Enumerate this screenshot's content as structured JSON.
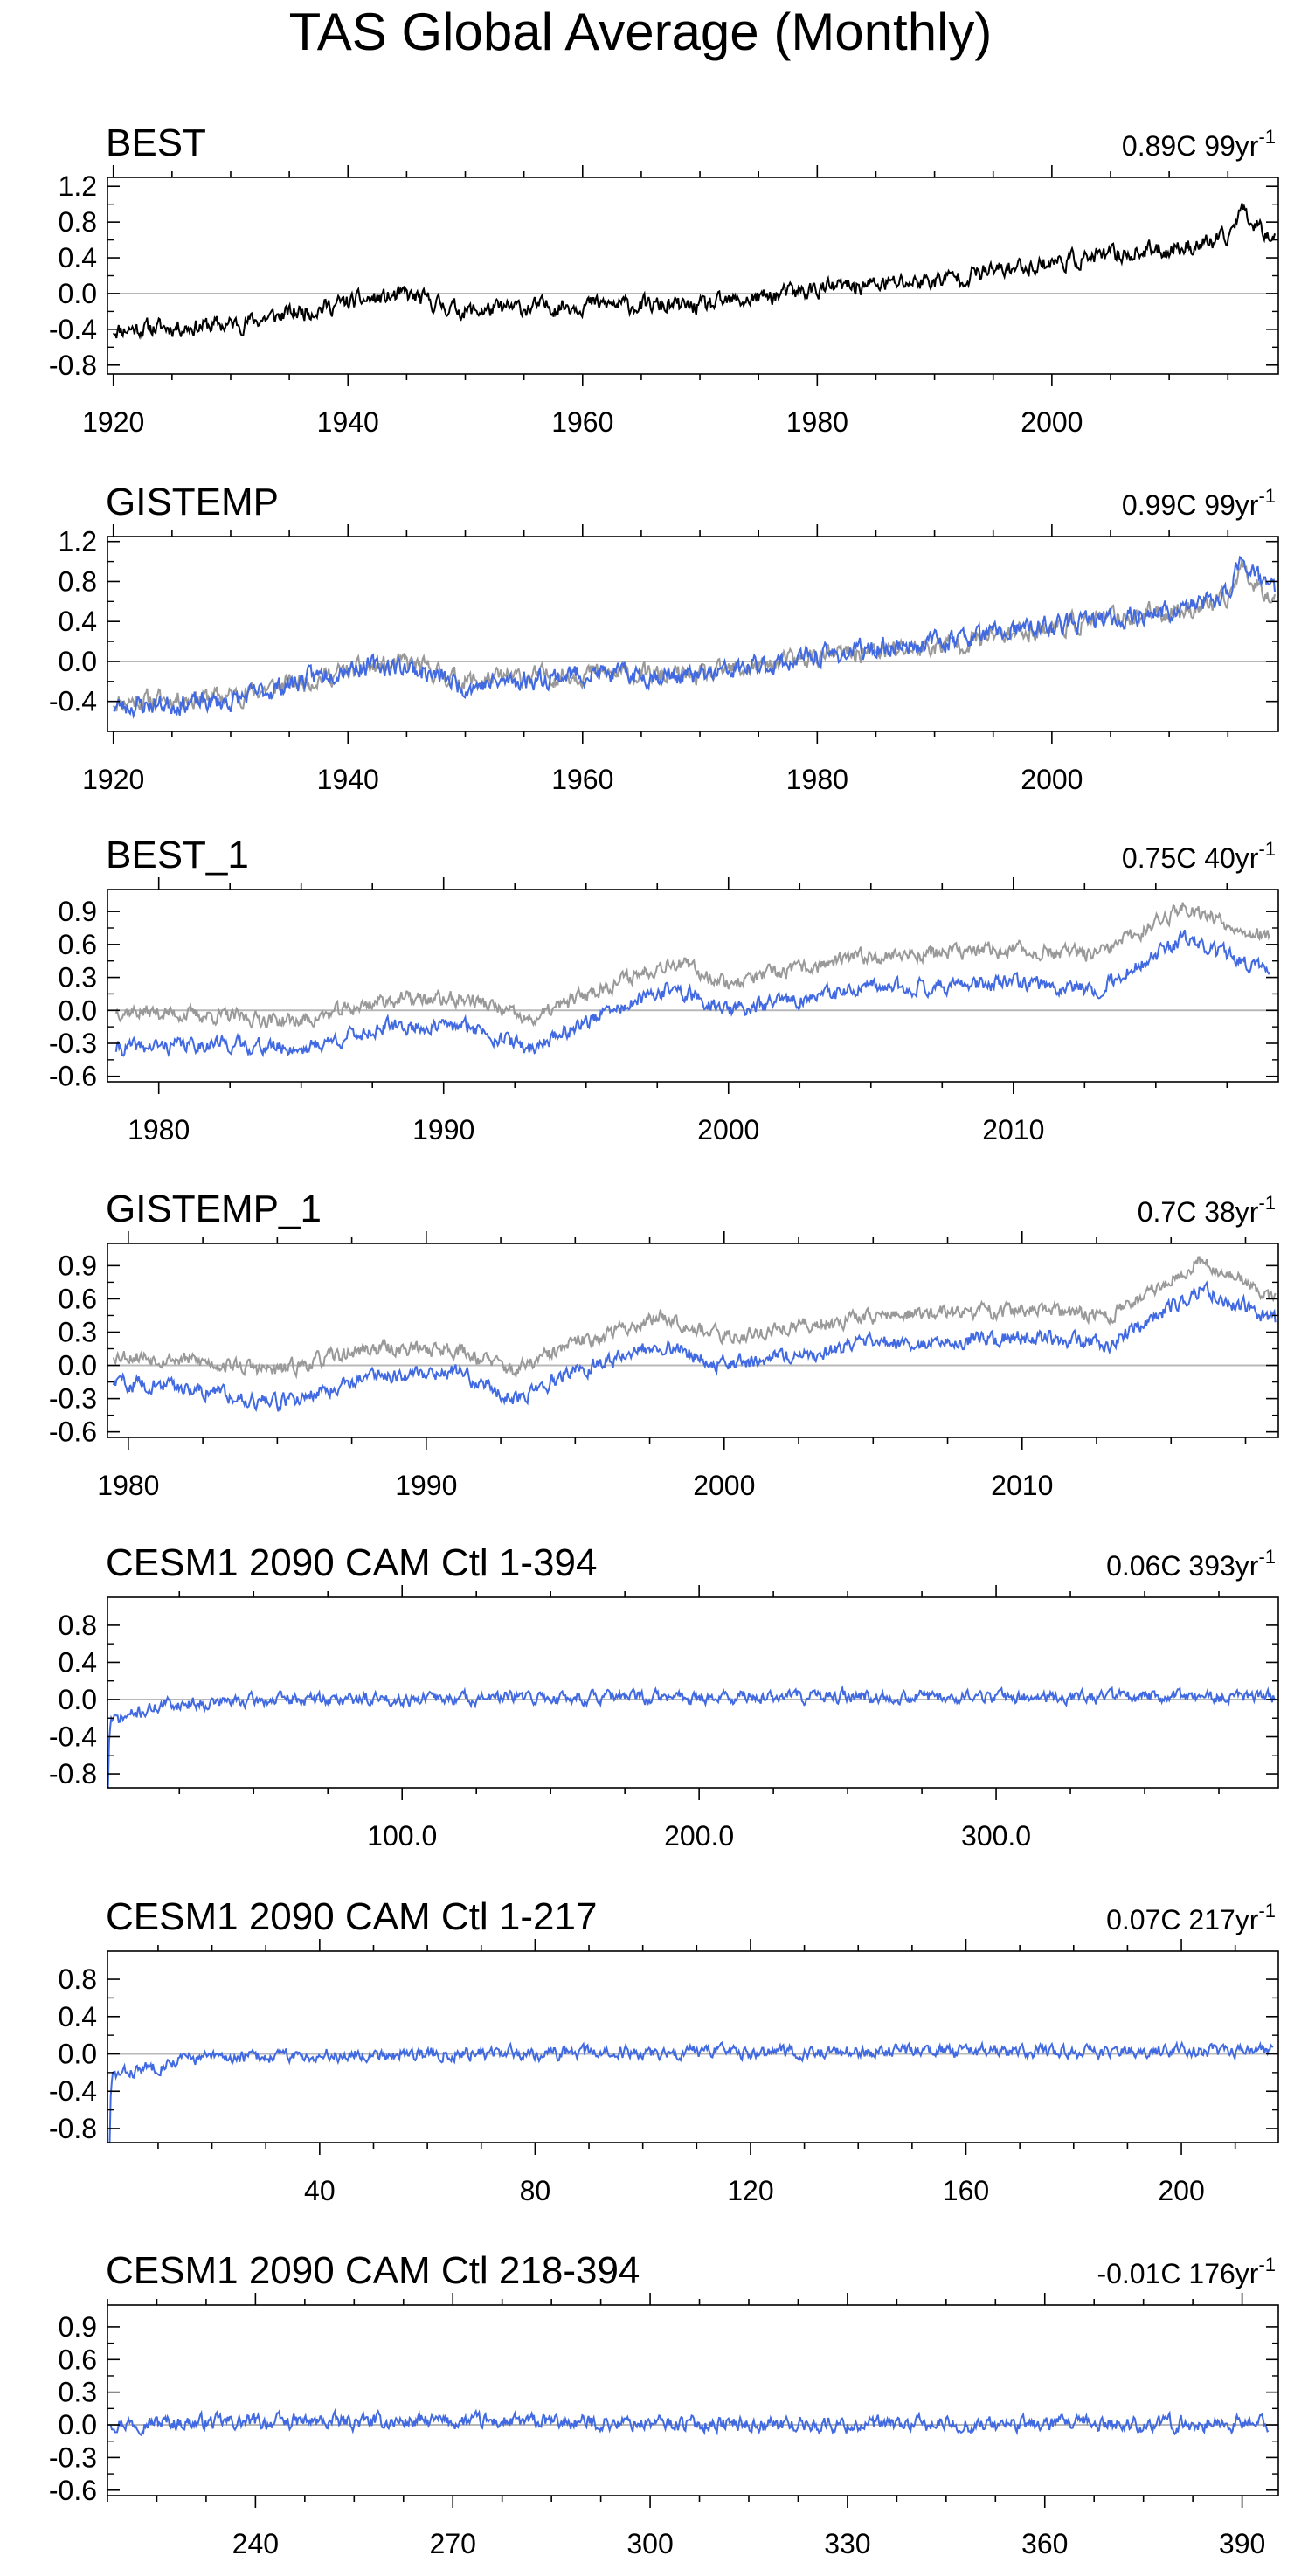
{
  "figure": {
    "title": "TAS Global Average (Monthly)"
  },
  "chart_data": [
    {
      "type": "line",
      "title": "BEST",
      "trend_value": "0.89C 99yr",
      "trend_superscript": "-1",
      "xlabel": "",
      "ylabel": "",
      "xlim": [
        1919.5,
        2019.3
      ],
      "ylim": [
        -0.9,
        1.3
      ],
      "xticks": [
        1920,
        1940,
        1960,
        1980,
        2000
      ],
      "xtick_labels": [
        "1920",
        "1940",
        "1960",
        "1980",
        "2000"
      ],
      "yticks": [
        -0.8,
        -0.4,
        0.0,
        0.4,
        0.8,
        1.2
      ],
      "ytick_labels": [
        "-0.8",
        "-0.4",
        "0.0",
        "0.4",
        "0.8",
        "1.2"
      ],
      "zero_line": true,
      "colors": {
        "primary": "#000000",
        "reference": "#999999"
      },
      "series": [
        {
          "role": "primary",
          "noise": 0.1,
          "seed": 11,
          "anchors": [
            [
              1920,
              -0.4
            ],
            [
              1930,
              -0.35
            ],
            [
              1940,
              -0.1
            ],
            [
              1945,
              -0.02
            ],
            [
              1950,
              -0.2
            ],
            [
              1960,
              -0.12
            ],
            [
              1970,
              -0.15
            ],
            [
              1980,
              0.05
            ],
            [
              1990,
              0.15
            ],
            [
              2000,
              0.35
            ],
            [
              2010,
              0.5
            ],
            [
              2015,
              0.6
            ],
            [
              2016,
              0.95
            ],
            [
              2019,
              0.62
            ]
          ]
        }
      ]
    },
    {
      "type": "line",
      "title": "GISTEMP",
      "trend_value": "0.99C 99yr",
      "trend_superscript": "-1",
      "xlabel": "",
      "ylabel": "",
      "xlim": [
        1919.5,
        2019.3
      ],
      "ylim": [
        -0.7,
        1.25
      ],
      "xticks": [
        1920,
        1940,
        1960,
        1980,
        2000
      ],
      "xtick_labels": [
        "1920",
        "1940",
        "1960",
        "1980",
        "2000"
      ],
      "yticks": [
        -0.4,
        0.0,
        0.4,
        0.8,
        1.2
      ],
      "ytick_labels": [
        "-0.4",
        "0.0",
        "0.4",
        "0.8",
        "1.2"
      ],
      "zero_line": true,
      "colors": {
        "primary": "#4169e1",
        "reference": "#999999"
      },
      "series": [
        {
          "role": "reference",
          "noise": 0.1,
          "seed": 11,
          "anchors": [
            [
              1920,
              -0.4
            ],
            [
              1930,
              -0.35
            ],
            [
              1940,
              -0.1
            ],
            [
              1945,
              -0.02
            ],
            [
              1950,
              -0.2
            ],
            [
              1960,
              -0.12
            ],
            [
              1970,
              -0.15
            ],
            [
              1980,
              0.05
            ],
            [
              1990,
              0.15
            ],
            [
              2000,
              0.35
            ],
            [
              2010,
              0.5
            ],
            [
              2015,
              0.6
            ],
            [
              2016,
              0.95
            ],
            [
              2019,
              0.62
            ]
          ]
        },
        {
          "role": "primary",
          "noise": 0.1,
          "seed": 23,
          "anchors": [
            [
              1920,
              -0.45
            ],
            [
              1930,
              -0.4
            ],
            [
              1940,
              -0.05
            ],
            [
              1945,
              -0.05
            ],
            [
              1950,
              -0.25
            ],
            [
              1960,
              -0.12
            ],
            [
              1970,
              -0.15
            ],
            [
              1980,
              0.05
            ],
            [
              1990,
              0.2
            ],
            [
              2000,
              0.35
            ],
            [
              2010,
              0.5
            ],
            [
              2015,
              0.65
            ],
            [
              2016,
              1.05
            ],
            [
              2019,
              0.7
            ]
          ]
        }
      ]
    },
    {
      "type": "line",
      "title": "BEST_1",
      "trend_value": "0.75C 40yr",
      "trend_superscript": "-1",
      "xlabel": "",
      "ylabel": "",
      "xlim": [
        1978.2,
        2019.3
      ],
      "ylim": [
        -0.65,
        1.1
      ],
      "xticks": [
        1980,
        1990,
        2000,
        2010
      ],
      "xtick_labels": [
        "1980",
        "1990",
        "2000",
        "2010"
      ],
      "yticks": [
        -0.6,
        -0.3,
        0.0,
        0.3,
        0.6,
        0.9
      ],
      "ytick_labels": [
        "-0.6",
        "-0.3",
        "0.0",
        "0.3",
        "0.6",
        "0.9"
      ],
      "zero_line": true,
      "colors": {
        "primary": "#4169e1",
        "reference": "#999999"
      },
      "series": [
        {
          "role": "reference",
          "noise": 0.07,
          "seed": 37,
          "anchors": [
            [
              1978.5,
              0.0
            ],
            [
              1982,
              -0.05
            ],
            [
              1985,
              -0.1
            ],
            [
              1988,
              0.1
            ],
            [
              1991,
              0.1
            ],
            [
              1993,
              -0.1
            ],
            [
              1995,
              0.15
            ],
            [
              1998,
              0.45
            ],
            [
              2000,
              0.25
            ],
            [
              2005,
              0.5
            ],
            [
              2010,
              0.55
            ],
            [
              2013,
              0.5
            ],
            [
              2016,
              0.95
            ],
            [
              2019,
              0.65
            ]
          ]
        },
        {
          "role": "primary",
          "noise": 0.07,
          "seed": 41,
          "anchors": [
            [
              1978.5,
              -0.35
            ],
            [
              1982,
              -0.3
            ],
            [
              1985,
              -0.35
            ],
            [
              1988,
              -0.15
            ],
            [
              1991,
              -0.15
            ],
            [
              1993,
              -0.35
            ],
            [
              1995,
              -0.1
            ],
            [
              1998,
              0.2
            ],
            [
              2000,
              0.0
            ],
            [
              2005,
              0.2
            ],
            [
              2010,
              0.25
            ],
            [
              2013,
              0.2
            ],
            [
              2016,
              0.65
            ],
            [
              2019,
              0.35
            ]
          ]
        }
      ]
    },
    {
      "type": "line",
      "title": "GISTEMP_1",
      "trend_value": "0.7C 38yr",
      "trend_superscript": "-1",
      "xlabel": "",
      "ylabel": "",
      "xlim": [
        1979.3,
        2018.6
      ],
      "ylim": [
        -0.65,
        1.1
      ],
      "xticks": [
        1980,
        1990,
        2000,
        2010
      ],
      "xtick_labels": [
        "1980",
        "1990",
        "2000",
        "2010"
      ],
      "yticks": [
        -0.6,
        -0.3,
        0.0,
        0.3,
        0.6,
        0.9
      ],
      "ytick_labels": [
        "-0.6",
        "-0.3",
        "0.0",
        "0.3",
        "0.6",
        "0.9"
      ],
      "zero_line": true,
      "colors": {
        "primary": "#4169e1",
        "reference": "#999999"
      },
      "series": [
        {
          "role": "reference",
          "noise": 0.07,
          "seed": 53,
          "anchors": [
            [
              1979.5,
              0.1
            ],
            [
              1982,
              0.05
            ],
            [
              1985,
              -0.05
            ],
            [
              1988,
              0.15
            ],
            [
              1991,
              0.15
            ],
            [
              1993,
              -0.05
            ],
            [
              1995,
              0.2
            ],
            [
              1998,
              0.45
            ],
            [
              2000,
              0.25
            ],
            [
              2005,
              0.45
            ],
            [
              2010,
              0.5
            ],
            [
              2013,
              0.45
            ],
            [
              2016,
              0.95
            ],
            [
              2018.5,
              0.6
            ]
          ]
        },
        {
          "role": "primary",
          "noise": 0.07,
          "seed": 59,
          "anchors": [
            [
              1979.5,
              -0.15
            ],
            [
              1982,
              -0.2
            ],
            [
              1985,
              -0.35
            ],
            [
              1988,
              -0.1
            ],
            [
              1991,
              -0.05
            ],
            [
              1993,
              -0.3
            ],
            [
              1995,
              -0.05
            ],
            [
              1998,
              0.2
            ],
            [
              2000,
              0.0
            ],
            [
              2005,
              0.2
            ],
            [
              2010,
              0.25
            ],
            [
              2013,
              0.2
            ],
            [
              2016,
              0.7
            ],
            [
              2018.5,
              0.4
            ]
          ]
        }
      ]
    },
    {
      "type": "line",
      "title": "CESM1 2090 CAM Ctl 1-394",
      "trend_value": "0.06C 393yr",
      "trend_superscript": "-1",
      "xlabel": "",
      "ylabel": "",
      "xlim": [
        0.8,
        395
      ],
      "ylim": [
        -0.95,
        1.1
      ],
      "xticks": [
        100,
        200,
        300
      ],
      "xtick_labels": [
        "100.0",
        "200.0",
        "300.0"
      ],
      "yticks": [
        -0.8,
        -0.4,
        0.0,
        0.4,
        0.8
      ],
      "ytick_labels": [
        "-0.8",
        "-0.4",
        "0.0",
        "0.4",
        "0.8"
      ],
      "zero_line": true,
      "colors": {
        "primary": "#4169e1",
        "reference": "#999999"
      },
      "series": [
        {
          "role": "primary",
          "noise": 0.07,
          "seed": 71,
          "spinup": [
            -0.95,
            -0.45,
            -0.3,
            -0.2
          ],
          "anchors": [
            [
              1,
              -0.25
            ],
            [
              20,
              -0.05
            ],
            [
              60,
              0.0
            ],
            [
              150,
              0.02
            ],
            [
              270,
              0.03
            ],
            [
              394,
              0.02
            ]
          ]
        }
      ]
    },
    {
      "type": "line",
      "title": "CESM1 2090 CAM Ctl 1-217",
      "trend_value": "0.07C 217yr",
      "trend_superscript": "-1",
      "xlabel": "",
      "ylabel": "",
      "xlim": [
        0.6,
        218
      ],
      "ylim": [
        -0.95,
        1.1
      ],
      "xticks": [
        40,
        80,
        120,
        160,
        200
      ],
      "xtick_labels": [
        "40",
        "80",
        "120",
        "160",
        "200"
      ],
      "yticks": [
        -0.8,
        -0.4,
        0.0,
        0.4,
        0.8
      ],
      "ytick_labels": [
        "-0.8",
        "-0.4",
        "0.0",
        "0.4",
        "0.8"
      ],
      "zero_line": true,
      "colors": {
        "primary": "#4169e1",
        "reference": "#999999"
      },
      "series": [
        {
          "role": "primary",
          "noise": 0.07,
          "seed": 83,
          "spinup": [
            -0.95,
            -0.45,
            -0.3,
            -0.2
          ],
          "anchors": [
            [
              1,
              -0.25
            ],
            [
              15,
              -0.05
            ],
            [
              50,
              0.0
            ],
            [
              120,
              0.02
            ],
            [
              217,
              0.03
            ]
          ]
        }
      ]
    },
    {
      "type": "line",
      "title": "CESM1 2090 CAM Ctl 218-394",
      "trend_value": "-0.01C 176yr",
      "trend_superscript": "-1",
      "xlabel": "",
      "ylabel": "",
      "xlim": [
        217.5,
        395.5
      ],
      "ylim": [
        -0.65,
        1.1
      ],
      "xticks": [
        240,
        270,
        300,
        330,
        360,
        390
      ],
      "xtick_labels": [
        "240",
        "270",
        "300",
        "330",
        "360",
        "390"
      ],
      "yticks": [
        -0.6,
        -0.3,
        0.0,
        0.3,
        0.6,
        0.9
      ],
      "ytick_labels": [
        "-0.6",
        "-0.3",
        "0.0",
        "0.3",
        "0.6",
        "0.9"
      ],
      "zero_line": true,
      "colors": {
        "primary": "#4169e1",
        "reference": "#999999"
      },
      "series": [
        {
          "role": "primary",
          "noise": 0.07,
          "seed": 97,
          "anchors": [
            [
              218,
              0.02
            ],
            [
              270,
              0.03
            ],
            [
              330,
              0.0
            ],
            [
              394,
              0.01
            ]
          ]
        }
      ]
    }
  ]
}
